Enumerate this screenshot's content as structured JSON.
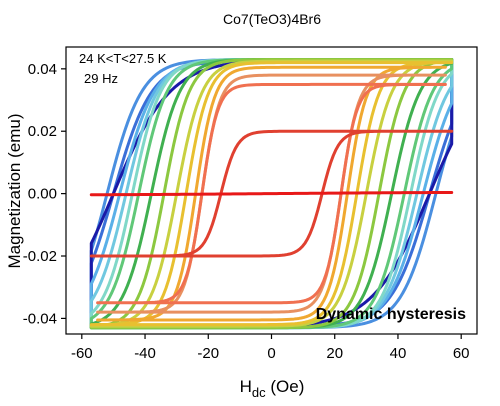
{
  "chart_data": {
    "type": "line",
    "title": "Co7(TeO3)4Br6",
    "xlabel_main": "H",
    "xlabel_sub": "dc",
    "xlabel_unit": " (Oe)",
    "ylabel": "Magnetization (emu)",
    "xlim": [
      -65,
      65
    ],
    "ylim": [
      -0.045,
      0.047
    ],
    "xticks": [
      -60,
      -40,
      -20,
      0,
      20,
      40,
      60
    ],
    "yticks": [
      -0.04,
      -0.02,
      0.0,
      0.02,
      0.04
    ],
    "ytick_labels": [
      "-0.04",
      "-0.02",
      "0.00",
      "0.02",
      "0.04"
    ],
    "annotations": [
      "24 K<T<27.5 K",
      "29 Hz",
      "Dynamic hysteresis"
    ],
    "grid": false,
    "series": [
      {
        "color": "#3a6fd8",
        "xmax": 57,
        "ms": 0.0425,
        "hc": 50,
        "w": 12,
        "mr": 0.033
      },
      {
        "color": "#4a8fe0",
        "xmax": 57,
        "ms": 0.043,
        "hc": 52,
        "w": 11,
        "mr": 0.034
      },
      {
        "color": "#1a1aa8",
        "xmax": 57,
        "ms": 0.043,
        "hc": 50,
        "w": 18,
        "mr": 0.031
      },
      {
        "color": "#5ab0e8",
        "xmax": 57,
        "ms": 0.043,
        "hc": 48,
        "w": 11,
        "mr": 0.035
      },
      {
        "color": "#70c8e0",
        "xmax": 57,
        "ms": 0.043,
        "hc": 46,
        "w": 10,
        "mr": 0.036
      },
      {
        "color": "#80d8c8",
        "xmax": 57,
        "ms": 0.043,
        "hc": 44,
        "w": 9,
        "mr": 0.036
      },
      {
        "color": "#60c878",
        "xmax": 57,
        "ms": 0.043,
        "hc": 42,
        "w": 9,
        "mr": 0.037
      },
      {
        "color": "#40b050",
        "xmax": 57,
        "ms": 0.043,
        "hc": 38,
        "w": 9,
        "mr": 0.037
      },
      {
        "color": "#8cc840",
        "xmax": 57,
        "ms": 0.043,
        "hc": 34,
        "w": 8,
        "mr": 0.038
      },
      {
        "color": "#c8d040",
        "xmax": 57,
        "ms": 0.0425,
        "hc": 30,
        "w": 8,
        "mr": 0.038
      },
      {
        "color": "#e8c030",
        "xmax": 57,
        "ms": 0.042,
        "hc": 27,
        "w": 7,
        "mr": 0.038
      },
      {
        "color": "#f0a830",
        "xmax": 55,
        "ms": 0.0405,
        "hc": 24,
        "w": 6,
        "mr": 0.037
      },
      {
        "color": "#e89060",
        "xmax": 55,
        "ms": 0.038,
        "hc": 22,
        "w": 5.5,
        "mr": 0.035
      },
      {
        "color": "#f07050",
        "xmax": 55,
        "ms": 0.035,
        "hc": 22,
        "w": 5,
        "mr": 0.033
      },
      {
        "color": "#e04030",
        "xmax": 57,
        "ms": 0.02,
        "hc": 16,
        "w": 5,
        "mr": 0.012
      },
      {
        "color": "#e81818",
        "xmax": 57,
        "ms": 0.0005,
        "hc": 0,
        "w": 60,
        "mr": 0.0
      }
    ]
  }
}
